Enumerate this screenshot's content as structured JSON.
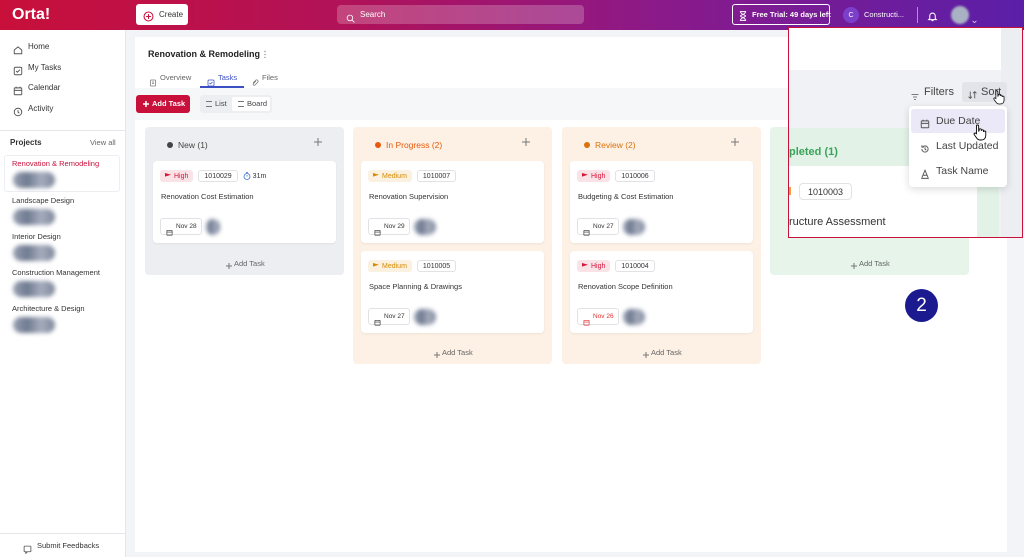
{
  "topbar": {
    "logo": "Orta!",
    "create": "Create",
    "search": "Search",
    "trial": "Free Trial: 49 days left",
    "workspace_initial": "C",
    "workspace": "Constructi..."
  },
  "sidebar": {
    "nav": [
      "Home",
      "My Tasks",
      "Calendar",
      "Activity"
    ],
    "projects_title": "Projects",
    "view_all": "View all",
    "projects": [
      "Renovation & Remodeling",
      "Landscape Design",
      "Interior Design",
      "Construction Management",
      "Architecture & Design"
    ],
    "feedback": "Submit Feedbacks"
  },
  "project": {
    "title": "Renovation & Remodeling",
    "tabs": [
      "Overview",
      "Tasks",
      "Files"
    ],
    "add_task": "Add Task",
    "views": [
      "List",
      "Board"
    ]
  },
  "columns": [
    {
      "title": "New (1)",
      "color": "#444444",
      "background": "#eceef1",
      "add": "Add Task",
      "cards": [
        {
          "priority": "High",
          "priority_color": "#d6163a",
          "id": "1010029",
          "time": "31m",
          "title": "Renovation Cost Estimation",
          "date": "Nov 28"
        }
      ]
    },
    {
      "title": "In Progress (2)",
      "color": "#e8590c",
      "background": "#fdf0e4",
      "add": "Add Task",
      "cards": [
        {
          "priority": "Medium",
          "priority_color": "#d98a00",
          "id": "1010007",
          "title": "Renovation Supervision",
          "date": "Nov 29"
        },
        {
          "priority": "Medium",
          "priority_color": "#d98a00",
          "id": "1010005",
          "title": "Space Planning & Drawings",
          "date": "Nov 27"
        }
      ]
    },
    {
      "title": "Review (2)",
      "color": "#d9730d",
      "background": "#fdf0e4",
      "add": "Add Task",
      "cards": [
        {
          "priority": "High",
          "priority_color": "#d6163a",
          "id": "1010006",
          "title": "Budgeting & Cost Estimation",
          "date": "Nov 27"
        },
        {
          "priority": "High",
          "priority_color": "#d6163a",
          "id": "1010004",
          "title": "Renovation Scope Definition",
          "date": "Nov 26",
          "date_color": "#e03131"
        }
      ]
    },
    {
      "background": "#e6f4ea",
      "add": "Add Task",
      "cards": []
    }
  ],
  "zoom": {
    "column_title": "pleted (1)",
    "card_id": "1010003",
    "card_title": "ructure Assessment",
    "filters": "Filters",
    "sort": "Sort",
    "sort_options": [
      "Due Date",
      "Last Updated",
      "Task Name"
    ]
  },
  "step": "2"
}
